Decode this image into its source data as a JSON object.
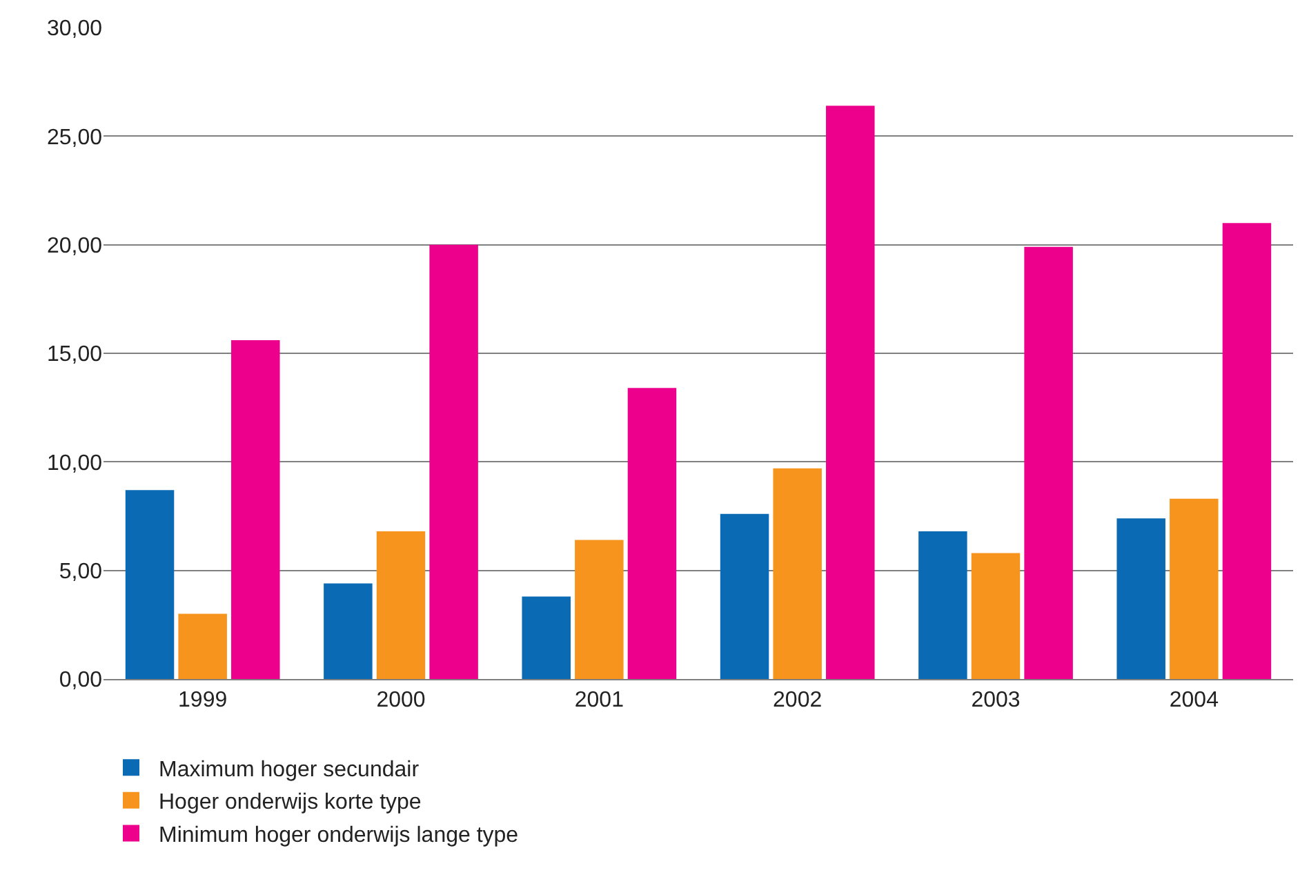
{
  "chart_data": {
    "type": "bar",
    "categories": [
      "1999",
      "2000",
      "2001",
      "2002",
      "2003",
      "2004"
    ],
    "series": [
      {
        "name": "Maximum hoger secundair",
        "color": "#0a6ab4",
        "values": [
          8.7,
          4.4,
          3.8,
          7.6,
          6.8,
          7.4
        ]
      },
      {
        "name": "Hoger onderwijs korte type",
        "color": "#f7941d",
        "values": [
          3.0,
          6.8,
          6.4,
          9.7,
          5.8,
          8.3
        ]
      },
      {
        "name": "Minimum hoger onderwijs lange type",
        "color": "#ec008c",
        "values": [
          15.6,
          20.0,
          13.4,
          26.4,
          19.9,
          21.0
        ]
      }
    ],
    "ylim": [
      0,
      30
    ],
    "yticks": [
      {
        "value": 0,
        "label": "0,00"
      },
      {
        "value": 5,
        "label": "5,00"
      },
      {
        "value": 10,
        "label": "10,00"
      },
      {
        "value": 15,
        "label": "15,00"
      },
      {
        "value": 20,
        "label": "20,00"
      },
      {
        "value": 25,
        "label": "25,00"
      },
      {
        "value": 30,
        "label": "30,00"
      }
    ],
    "grid": "y",
    "legend": "bottom left"
  }
}
